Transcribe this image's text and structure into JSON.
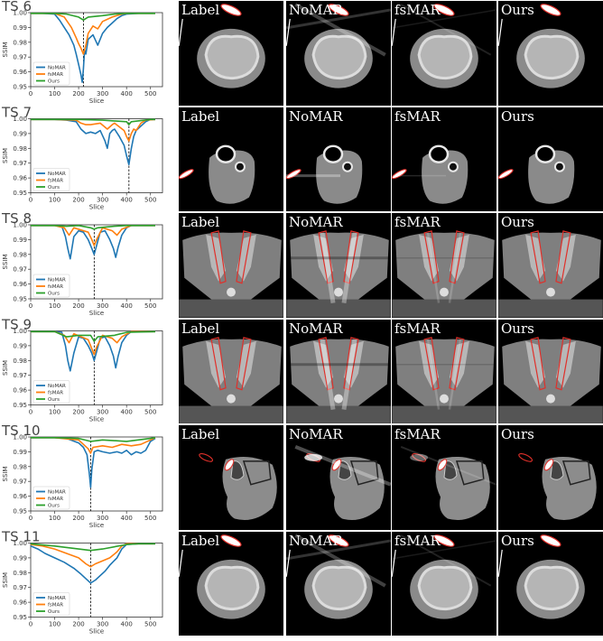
{
  "chart_data": [
    {
      "type": "line",
      "title": "TS 6",
      "xlabel": "Slice",
      "ylabel": "SSIM",
      "xlim": [
        0,
        550
      ],
      "ylim": [
        0.95,
        1.0
      ],
      "xticks": [
        0,
        100,
        200,
        300,
        400,
        500
      ],
      "yticks": [
        0.95,
        0.96,
        0.97,
        0.98,
        0.99,
        1.0
      ],
      "marker_slice": 220,
      "series": [
        {
          "name": "NoMAR",
          "color": "#1f77b4",
          "x": [
            0,
            50,
            100,
            120,
            140,
            160,
            180,
            190,
            200,
            210,
            215,
            220,
            225,
            230,
            240,
            260,
            280,
            300,
            320,
            340,
            360,
            380,
            400,
            450,
            500,
            520
          ],
          "y": [
            0.9995,
            0.9995,
            0.999,
            0.995,
            0.99,
            0.985,
            0.978,
            0.972,
            0.965,
            0.958,
            0.953,
            0.962,
            0.975,
            0.972,
            0.982,
            0.985,
            0.978,
            0.986,
            0.99,
            0.993,
            0.996,
            0.998,
            0.999,
            0.9995,
            0.9995,
            0.9995
          ]
        },
        {
          "name": "fsMAR",
          "color": "#ff7f0e",
          "x": [
            0,
            100,
            140,
            170,
            190,
            200,
            210,
            220,
            230,
            240,
            260,
            280,
            300,
            340,
            380,
            400,
            500,
            520
          ],
          "y": [
            0.9995,
            0.9995,
            0.997,
            0.99,
            0.983,
            0.979,
            0.976,
            0.972,
            0.978,
            0.986,
            0.991,
            0.989,
            0.994,
            0.997,
            0.999,
            0.9995,
            0.9995,
            0.9995
          ]
        },
        {
          "name": "Ours",
          "color": "#2ca02c",
          "x": [
            0,
            100,
            150,
            200,
            220,
            240,
            300,
            350,
            400,
            500,
            520
          ],
          "y": [
            0.9995,
            0.9995,
            0.999,
            0.997,
            0.995,
            0.997,
            0.998,
            0.999,
            0.9995,
            0.9995,
            0.9995
          ]
        }
      ]
    },
    {
      "type": "line",
      "title": "TS 7",
      "xlabel": "Slice",
      "ylabel": "SSIM",
      "xlim": [
        0,
        550
      ],
      "ylim": [
        0.95,
        1.0
      ],
      "xticks": [
        0,
        100,
        200,
        300,
        400,
        500
      ],
      "yticks": [
        0.95,
        0.96,
        0.97,
        0.98,
        0.99,
        1.0
      ],
      "marker_slice": 410,
      "series": [
        {
          "name": "NoMAR",
          "color": "#1f77b4",
          "x": [
            0,
            100,
            150,
            190,
            210,
            230,
            250,
            270,
            290,
            310,
            320,
            330,
            340,
            350,
            370,
            390,
            400,
            410,
            420,
            430,
            440,
            460,
            480,
            500,
            520
          ],
          "y": [
            0.9995,
            0.9995,
            0.999,
            0.998,
            0.993,
            0.99,
            0.991,
            0.99,
            0.992,
            0.985,
            0.98,
            0.99,
            0.992,
            0.993,
            0.988,
            0.982,
            0.975,
            0.969,
            0.98,
            0.988,
            0.992,
            0.995,
            0.998,
            0.9995,
            0.9995
          ]
        },
        {
          "name": "fsMAR",
          "color": "#ff7f0e",
          "x": [
            0,
            100,
            190,
            210,
            230,
            250,
            290,
            320,
            340,
            350,
            390,
            400,
            410,
            420,
            430,
            440,
            460,
            480,
            520
          ],
          "y": [
            0.9995,
            0.9995,
            0.999,
            0.997,
            0.996,
            0.996,
            0.997,
            0.993,
            0.996,
            0.997,
            0.992,
            0.988,
            0.985,
            0.99,
            0.993,
            0.992,
            0.997,
            0.999,
            0.9995
          ]
        },
        {
          "name": "Ours",
          "color": "#2ca02c",
          "x": [
            0,
            100,
            200,
            300,
            400,
            410,
            420,
            500,
            520
          ],
          "y": [
            0.9995,
            0.9995,
            0.9995,
            0.999,
            0.998,
            0.996,
            0.998,
            0.9995,
            0.9995
          ]
        }
      ]
    },
    {
      "type": "line",
      "title": "TS 8",
      "xlabel": "Slice",
      "ylabel": "SSIM",
      "xlim": [
        0,
        550
      ],
      "ylim": [
        0.95,
        1.0
      ],
      "xticks": [
        0,
        100,
        200,
        300,
        400,
        500
      ],
      "yticks": [
        0.95,
        0.96,
        0.97,
        0.98,
        0.99,
        1.0
      ],
      "marker_slice": 265,
      "series": [
        {
          "name": "NoMAR",
          "color": "#1f77b4",
          "x": [
            0,
            100,
            130,
            145,
            155,
            165,
            180,
            200,
            220,
            240,
            255,
            265,
            275,
            290,
            310,
            330,
            345,
            355,
            365,
            380,
            400,
            420,
            450,
            500,
            520
          ],
          "y": [
            0.9995,
            0.9995,
            0.999,
            0.992,
            0.984,
            0.977,
            0.992,
            0.996,
            0.995,
            0.99,
            0.984,
            0.98,
            0.986,
            0.995,
            0.996,
            0.99,
            0.984,
            0.978,
            0.985,
            0.993,
            0.998,
            0.9995,
            0.9995,
            0.9995,
            0.9995
          ]
        },
        {
          "name": "fsMAR",
          "color": "#ff7f0e",
          "x": [
            0,
            100,
            140,
            160,
            180,
            240,
            255,
            265,
            275,
            300,
            340,
            360,
            380,
            420,
            520
          ],
          "y": [
            0.9995,
            0.9995,
            0.998,
            0.993,
            0.998,
            0.995,
            0.99,
            0.986,
            0.99,
            0.998,
            0.996,
            0.993,
            0.997,
            0.9995,
            0.9995
          ]
        },
        {
          "name": "Ours",
          "color": "#2ca02c",
          "x": [
            0,
            100,
            150,
            200,
            250,
            265,
            280,
            350,
            400,
            520
          ],
          "y": [
            0.9995,
            0.9995,
            0.999,
            0.9995,
            0.998,
            0.997,
            0.998,
            0.999,
            0.9995,
            0.9995
          ]
        }
      ]
    },
    {
      "type": "line",
      "title": "TS 9",
      "xlabel": "Slice",
      "ylabel": "SSIM",
      "xlim": [
        0,
        550
      ],
      "ylim": [
        0.95,
        1.0
      ],
      "xticks": [
        0,
        100,
        200,
        300,
        400,
        500
      ],
      "yticks": [
        0.95,
        0.96,
        0.97,
        0.98,
        0.99,
        1.0
      ],
      "marker_slice": 265,
      "series": [
        {
          "name": "NoMAR",
          "color": "#1f77b4",
          "x": [
            0,
            100,
            130,
            145,
            155,
            165,
            180,
            200,
            220,
            240,
            255,
            265,
            275,
            290,
            310,
            330,
            345,
            355,
            365,
            380,
            400,
            420,
            450,
            500,
            520
          ],
          "y": [
            0.9995,
            0.9995,
            0.999,
            0.99,
            0.98,
            0.973,
            0.985,
            0.996,
            0.995,
            0.99,
            0.985,
            0.98,
            0.986,
            0.995,
            0.996,
            0.99,
            0.983,
            0.975,
            0.983,
            0.992,
            0.997,
            0.9995,
            0.9995,
            0.9995,
            0.9995
          ]
        },
        {
          "name": "fsMAR",
          "color": "#ff7f0e",
          "x": [
            0,
            100,
            140,
            160,
            180,
            240,
            255,
            265,
            275,
            300,
            340,
            360,
            380,
            420,
            520
          ],
          "y": [
            0.9995,
            0.9995,
            0.997,
            0.992,
            0.998,
            0.994,
            0.988,
            0.984,
            0.989,
            0.997,
            0.995,
            0.992,
            0.996,
            0.9995,
            0.9995
          ]
        },
        {
          "name": "Ours",
          "color": "#2ca02c",
          "x": [
            0,
            100,
            150,
            200,
            250,
            265,
            280,
            350,
            400,
            520
          ],
          "y": [
            0.9995,
            0.9995,
            0.996,
            0.997,
            0.997,
            0.993,
            0.996,
            0.997,
            0.999,
            0.9995
          ]
        }
      ]
    },
    {
      "type": "line",
      "title": "TS 10",
      "xlabel": "Slice",
      "ylabel": "SSIM",
      "xlim": [
        0,
        550
      ],
      "ylim": [
        0.95,
        1.0
      ],
      "xticks": [
        0,
        100,
        200,
        300,
        400,
        500
      ],
      "yticks": [
        0.95,
        0.96,
        0.97,
        0.98,
        0.99,
        1.0
      ],
      "marker_slice": 250,
      "series": [
        {
          "name": "NoMAR",
          "color": "#1f77b4",
          "x": [
            0,
            100,
            150,
            200,
            220,
            235,
            245,
            250,
            255,
            265,
            280,
            300,
            330,
            360,
            380,
            400,
            420,
            440,
            460,
            480,
            500,
            520
          ],
          "y": [
            0.9995,
            0.9995,
            0.999,
            0.996,
            0.993,
            0.988,
            0.975,
            0.966,
            0.978,
            0.99,
            0.991,
            0.99,
            0.989,
            0.99,
            0.989,
            0.991,
            0.988,
            0.99,
            0.989,
            0.991,
            0.997,
            0.999
          ]
        },
        {
          "name": "fsMAR",
          "color": "#ff7f0e",
          "x": [
            0,
            100,
            200,
            240,
            250,
            260,
            300,
            340,
            380,
            420,
            460,
            500,
            520
          ],
          "y": [
            0.9995,
            0.9995,
            0.998,
            0.992,
            0.989,
            0.993,
            0.994,
            0.993,
            0.995,
            0.994,
            0.995,
            0.998,
            0.9995
          ]
        },
        {
          "name": "Ours",
          "color": "#2ca02c",
          "x": [
            0,
            100,
            200,
            250,
            300,
            400,
            500,
            520
          ],
          "y": [
            0.9995,
            0.9995,
            0.999,
            0.997,
            0.998,
            0.997,
            0.999,
            0.9995
          ]
        }
      ]
    },
    {
      "type": "line",
      "title": "TS 11",
      "xlabel": "Slice",
      "ylabel": "SSIM",
      "xlim": [
        0,
        550
      ],
      "ylim": [
        0.95,
        1.0
      ],
      "xticks": [
        0,
        100,
        200,
        300,
        400,
        500
      ],
      "yticks": [
        0.95,
        0.96,
        0.97,
        0.98,
        0.99,
        1.0
      ],
      "marker_slice": 250,
      "series": [
        {
          "name": "NoMAR",
          "color": "#1f77b4",
          "x": [
            0,
            30,
            60,
            100,
            140,
            180,
            210,
            230,
            250,
            270,
            290,
            310,
            330,
            360,
            380,
            400,
            450,
            520
          ],
          "y": [
            0.998,
            0.996,
            0.993,
            0.99,
            0.987,
            0.983,
            0.979,
            0.976,
            0.973,
            0.975,
            0.978,
            0.981,
            0.985,
            0.99,
            0.996,
            0.999,
            0.9995,
            0.9995
          ]
        },
        {
          "name": "fsMAR",
          "color": "#ff7f0e",
          "x": [
            0,
            50,
            100,
            150,
            200,
            230,
            250,
            270,
            300,
            330,
            360,
            380,
            400,
            450,
            520
          ],
          "y": [
            0.999,
            0.998,
            0.996,
            0.993,
            0.99,
            0.986,
            0.984,
            0.986,
            0.988,
            0.99,
            0.994,
            0.998,
            0.9995,
            0.9995,
            0.9995
          ]
        },
        {
          "name": "Ours",
          "color": "#2ca02c",
          "x": [
            0,
            100,
            200,
            250,
            300,
            400,
            450,
            520
          ],
          "y": [
            0.9995,
            0.998,
            0.996,
            0.995,
            0.996,
            0.999,
            0.9995,
            0.9995
          ]
        }
      ]
    }
  ],
  "image_grid": {
    "column_labels": [
      "Label",
      "NoMAR",
      "fsMAR",
      "Ours"
    ],
    "rows": [
      {
        "case": "TS 6",
        "anatomy": "knee"
      },
      {
        "case": "TS 7",
        "anatomy": "neck"
      },
      {
        "case": "TS 8",
        "anatomy": "pelvis"
      },
      {
        "case": "TS 9",
        "anatomy": "pelvis"
      },
      {
        "case": "TS 10",
        "anatomy": "thigh"
      },
      {
        "case": "TS 11",
        "anatomy": "knee"
      }
    ]
  },
  "colors": {
    "contour": "#e0302a",
    "background": "#000000",
    "tissue": "#7a7a7a",
    "bone": "#d8d8d8"
  }
}
